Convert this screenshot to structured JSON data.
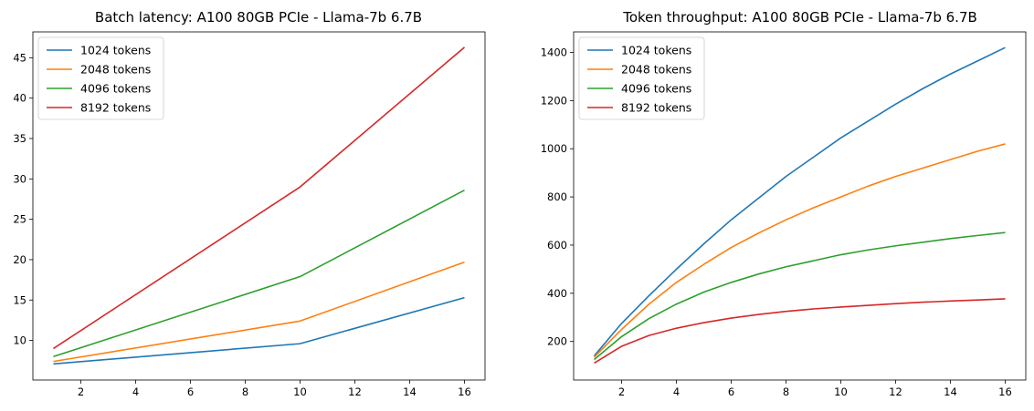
{
  "chart_data": [
    {
      "type": "line",
      "title": "Batch latency: A100 80GB PCIe - Llama-7b 6.7B",
      "xlabel": "",
      "ylabel": "",
      "xlim": [
        0.25,
        16.75
      ],
      "ylim": [
        5.1,
        48.2
      ],
      "xticks": [
        2,
        4,
        6,
        8,
        10,
        12,
        14,
        16
      ],
      "yticks": [
        10,
        15,
        20,
        25,
        30,
        35,
        40,
        45
      ],
      "legend": "upper-left",
      "grid": false,
      "series": [
        {
          "name": "1024 tokens",
          "color": "#1f77b4",
          "x": [
            1,
            10,
            16
          ],
          "y": [
            7.1,
            9.6,
            15.3
          ]
        },
        {
          "name": "2048 tokens",
          "color": "#ff7f0e",
          "x": [
            1,
            10,
            16
          ],
          "y": [
            7.4,
            12.4,
            19.7
          ]
        },
        {
          "name": "4096 tokens",
          "color": "#2ca02c",
          "x": [
            1,
            10,
            16
          ],
          "y": [
            8.0,
            17.9,
            28.6
          ]
        },
        {
          "name": "8192 tokens",
          "color": "#d62728",
          "x": [
            1,
            10,
            16
          ],
          "y": [
            9.0,
            29.0,
            46.3
          ]
        }
      ]
    },
    {
      "type": "line",
      "title": "Token throughput: A100 80GB PCIe - Llama-7b 6.7B",
      "xlabel": "",
      "ylabel": "",
      "xlim": [
        0.25,
        16.75
      ],
      "ylim": [
        40,
        1485
      ],
      "xticks": [
        2,
        4,
        6,
        8,
        10,
        12,
        14,
        16
      ],
      "yticks": [
        200,
        400,
        600,
        800,
        1000,
        1200,
        1400
      ],
      "legend": "upper-left",
      "grid": false,
      "series": [
        {
          "name": "1024 tokens",
          "color": "#1f77b4",
          "x": [
            1,
            2,
            3,
            4,
            5,
            6,
            7,
            8,
            9,
            10,
            11,
            12,
            13,
            14,
            15,
            16
          ],
          "y": [
            140,
            275,
            390,
            500,
            605,
            705,
            795,
            885,
            965,
            1045,
            1115,
            1185,
            1250,
            1310,
            1365,
            1420
          ]
        },
        {
          "name": "2048 tokens",
          "color": "#ff7f0e",
          "x": [
            1,
            2,
            3,
            4,
            5,
            6,
            7,
            8,
            9,
            10,
            11,
            12,
            13,
            14,
            15,
            16
          ],
          "y": [
            135,
            250,
            355,
            445,
            520,
            590,
            650,
            705,
            755,
            800,
            845,
            885,
            920,
            955,
            990,
            1020
          ]
        },
        {
          "name": "4096 tokens",
          "color": "#2ca02c",
          "x": [
            1,
            2,
            3,
            4,
            5,
            6,
            7,
            8,
            9,
            10,
            11,
            12,
            13,
            14,
            15,
            16
          ],
          "y": [
            125,
            220,
            295,
            355,
            405,
            445,
            480,
            510,
            535,
            560,
            580,
            597,
            612,
            627,
            640,
            652
          ]
        },
        {
          "name": "8192 tokens",
          "color": "#d62728",
          "x": [
            1,
            2,
            3,
            4,
            5,
            6,
            7,
            8,
            9,
            10,
            11,
            12,
            13,
            14,
            15,
            16
          ],
          "y": [
            110,
            180,
            225,
            255,
            278,
            297,
            312,
            325,
            335,
            343,
            350,
            357,
            363,
            368,
            372,
            377
          ]
        }
      ]
    }
  ]
}
